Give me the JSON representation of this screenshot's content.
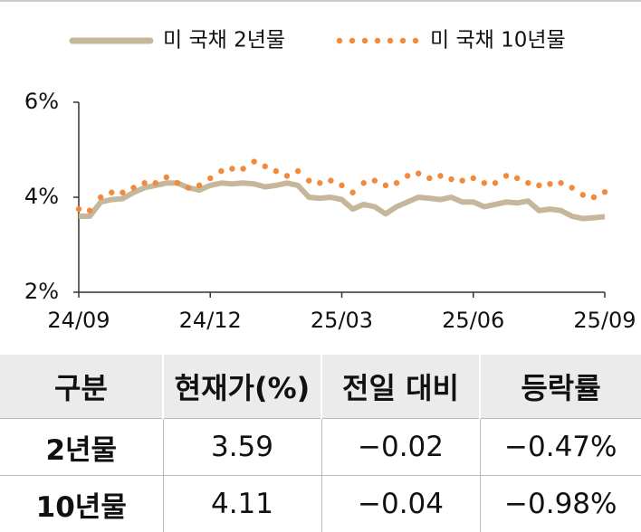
{
  "chart_data": {
    "type": "line",
    "x": [
      0,
      0.25,
      0.5,
      0.75,
      1,
      1.25,
      1.5,
      1.75,
      2,
      2.25,
      2.5,
      2.75,
      3,
      3.25,
      3.5,
      3.75,
      4,
      4.25,
      4.5,
      4.75,
      5,
      5.25,
      5.5,
      5.75,
      6,
      6.25,
      6.5,
      6.75,
      7,
      7.25,
      7.5,
      7.75,
      8,
      8.25,
      8.5,
      8.75,
      9,
      9.25,
      9.5,
      9.75,
      10,
      10.25,
      10.5,
      10.75,
      11,
      11.25,
      11.5,
      11.75,
      12
    ],
    "xlim": [
      0,
      12
    ],
    "xticks": [
      {
        "value": 0,
        "label": "24/09"
      },
      {
        "value": 3,
        "label": "24/12"
      },
      {
        "value": 6,
        "label": "25/03"
      },
      {
        "value": 9,
        "label": "25/06"
      },
      {
        "value": 12,
        "label": "25/09"
      }
    ],
    "ylim": [
      2,
      6
    ],
    "yticks": [
      {
        "value": 2,
        "label": "2%"
      },
      {
        "value": 4,
        "label": "4%"
      },
      {
        "value": 6,
        "label": "6%"
      }
    ],
    "series": [
      {
        "name": "미 국채 2년물",
        "color": "#c6b79b",
        "style": "solid",
        "values": [
          3.6,
          3.6,
          3.9,
          3.95,
          3.97,
          4.1,
          4.2,
          4.25,
          4.3,
          4.3,
          4.2,
          4.15,
          4.25,
          4.3,
          4.28,
          4.3,
          4.28,
          4.22,
          4.25,
          4.3,
          4.25,
          4.0,
          3.98,
          4.0,
          3.95,
          3.75,
          3.85,
          3.8,
          3.65,
          3.8,
          3.9,
          4.0,
          3.98,
          3.95,
          4.0,
          3.9,
          3.9,
          3.8,
          3.85,
          3.9,
          3.88,
          3.92,
          3.72,
          3.75,
          3.72,
          3.6,
          3.55,
          3.57,
          3.59
        ]
      },
      {
        "name": "미 국채 10년물",
        "color": "#f08a3c",
        "style": "dotted",
        "values": [
          3.75,
          3.72,
          4.0,
          4.1,
          4.1,
          4.2,
          4.3,
          4.3,
          4.42,
          4.3,
          4.2,
          4.25,
          4.4,
          4.55,
          4.6,
          4.6,
          4.75,
          4.65,
          4.55,
          4.45,
          4.55,
          4.35,
          4.3,
          4.35,
          4.25,
          4.1,
          4.3,
          4.35,
          4.25,
          4.3,
          4.45,
          4.5,
          4.4,
          4.45,
          4.38,
          4.35,
          4.4,
          4.3,
          4.3,
          4.45,
          4.4,
          4.3,
          4.25,
          4.28,
          4.3,
          4.2,
          4.05,
          4.0,
          4.11
        ]
      }
    ]
  },
  "table": {
    "header": [
      "구분",
      "현재가(%)",
      "전일 대비",
      "등락률"
    ],
    "rows": [
      [
        "2년물",
        "3.59",
        "−0.02",
        "−0.47%"
      ],
      [
        "10년물",
        "4.11",
        "−0.04",
        "−0.98%"
      ]
    ]
  }
}
